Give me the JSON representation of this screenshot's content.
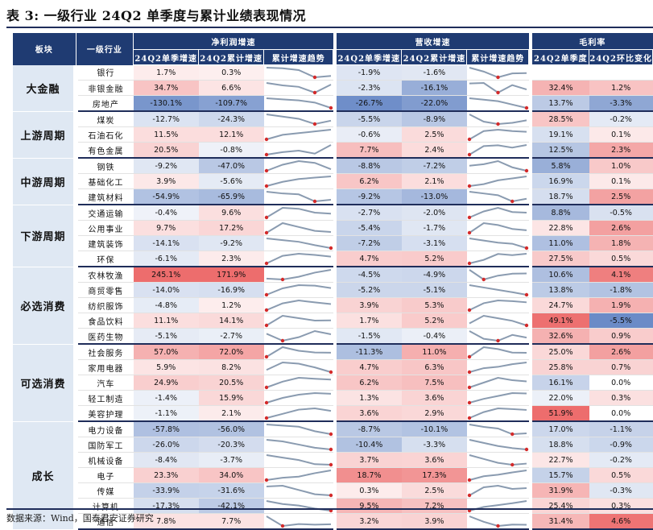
{
  "title": "表 3:  一级行业 24Q2 单季度与累计业绩表现情况",
  "source": "数据来源：Wind，国泰君安证券研究",
  "headers": {
    "block": "板块",
    "industry": "一级行业",
    "profit": "净利润增速",
    "revenue": "营收增速",
    "margin": "毛利率",
    "q2": "24Q2单季增速",
    "cum": "24Q2累计增速",
    "trend": "累计增速趋势",
    "margin_q2": "24Q2单季度",
    "margin_qoq": "24Q2环比变化"
  },
  "colors": {
    "header_bg": "#1f3b72",
    "block_bg": "#dfe8f3",
    "spark_line": "#8a9bb0",
    "spark_dot": "#d42a2a"
  },
  "groups": [
    {
      "name": "大金融",
      "rows": [
        {
          "industry": "银行",
          "p_q2": "1.7%",
          "p_cum": "0.3%",
          "r_q2": "-1.9%",
          "r_cum": "-1.6%",
          "m_q2": "",
          "m_qoq": "",
          "p_trend": [
            6.2,
            5.8,
            4.5,
            -0.7,
            0.3
          ],
          "r_trend": [
            0.5,
            -1.0,
            -3.2,
            -1.7,
            -1.6
          ]
        },
        {
          "industry": "非银金融",
          "p_q2": "34.7%",
          "p_cum": "6.6%",
          "r_q2": "-2.3%",
          "r_cum": "-16.1%",
          "m_q2": "32.4%",
          "m_qoq": "1.2%",
          "p_trend": [
            10,
            5,
            2,
            -10,
            6.6
          ],
          "r_trend": [
            -5,
            -4,
            -22,
            -8,
            -16.1
          ]
        },
        {
          "industry": "房地产",
          "p_q2": "-130.1%",
          "p_cum": "-109.7%",
          "r_q2": "-26.7%",
          "r_cum": "-22.0%",
          "m_q2": "13.7%",
          "m_qoq": "-3.3%",
          "p_trend": [
            -20,
            -30,
            -40,
            -60,
            -109.7
          ],
          "r_trend": [
            -2,
            -5,
            -8,
            -15,
            -22
          ]
        }
      ]
    },
    {
      "name": "上游周期",
      "rows": [
        {
          "industry": "煤炭",
          "p_q2": "-12.7%",
          "p_cum": "-24.3%",
          "r_q2": "-5.5%",
          "r_cum": "-8.9%",
          "m_q2": "28.5%",
          "m_qoq": "-0.2%",
          "p_trend": [
            -10,
            -15,
            -20,
            -32,
            -24.3
          ],
          "r_trend": [
            -4,
            -10,
            -12,
            -11,
            -8.9
          ]
        },
        {
          "industry": "石油石化",
          "p_q2": "11.5%",
          "p_cum": "12.1%",
          "r_q2": "-0.6%",
          "r_cum": "2.5%",
          "m_q2": "19.1%",
          "m_qoq": "0.1%",
          "p_trend": [
            -5,
            3,
            6,
            9,
            12.1
          ],
          "r_trend": [
            -3,
            3,
            4,
            3,
            2.5
          ]
        },
        {
          "industry": "有色金属",
          "p_q2": "20.5%",
          "p_cum": "-0.8%",
          "r_q2": "7.7%",
          "r_cum": "2.4%",
          "m_q2": "12.5%",
          "m_qoq": "2.3%",
          "p_trend": [
            -20,
            -15,
            -12,
            -18,
            -0.8
          ],
          "r_trend": [
            -10,
            1,
            2,
            -1,
            2.4
          ]
        }
      ]
    },
    {
      "name": "中游周期",
      "rows": [
        {
          "industry": "钢铁",
          "p_q2": "-9.2%",
          "p_cum": "-47.0%",
          "r_q2": "-8.8%",
          "r_cum": "-7.2%",
          "m_q2": "5.8%",
          "m_qoq": "1.0%",
          "p_trend": [
            -60,
            -10,
            20,
            5,
            -47
          ],
          "r_trend": [
            -4,
            -3,
            -1,
            -5,
            -7.2
          ]
        },
        {
          "industry": "基础化工",
          "p_q2": "3.9%",
          "p_cum": "-5.6%",
          "r_q2": "6.2%",
          "r_cum": "2.1%",
          "m_q2": "16.9%",
          "m_qoq": "0.1%",
          "p_trend": [
            -40,
            -25,
            -15,
            -10,
            -5.6
          ],
          "r_trend": [
            -8,
            -6,
            -2,
            0,
            2.1
          ]
        },
        {
          "industry": "建筑材料",
          "p_q2": "-54.9%",
          "p_cum": "-65.9%",
          "r_q2": "-9.2%",
          "r_cum": "-13.0%",
          "m_q2": "18.7%",
          "m_qoq": "2.5%",
          "p_trend": [
            -20,
            -30,
            -35,
            -75,
            -65.9
          ],
          "r_trend": [
            -5,
            -7,
            -9,
            -16,
            -13
          ]
        }
      ]
    },
    {
      "name": "下游周期",
      "rows": [
        {
          "industry": "交通运输",
          "p_q2": "-0.4%",
          "p_cum": "9.6%",
          "r_q2": "-2.7%",
          "r_cum": "-2.0%",
          "m_q2": "8.8%",
          "m_qoq": "-0.5%",
          "p_trend": [
            -10,
            40,
            35,
            15,
            9.6
          ],
          "r_trend": [
            -6,
            -1,
            2,
            -1.5,
            -2.0
          ]
        },
        {
          "industry": "公用事业",
          "p_q2": "9.7%",
          "p_cum": "17.2%",
          "r_q2": "-5.4%",
          "r_cum": "-1.7%",
          "m_q2": "22.8%",
          "m_qoq": "2.6%",
          "p_trend": [
            15,
            40,
            30,
            20,
            17.2
          ],
          "r_trend": [
            -3,
            2,
            1,
            -1,
            -1.7
          ]
        },
        {
          "industry": "建筑装饰",
          "p_q2": "-14.1%",
          "p_cum": "-9.2%",
          "r_q2": "-7.2%",
          "r_cum": "-3.1%",
          "m_q2": "11.0%",
          "m_qoq": "1.8%",
          "p_trend": [
            8,
            5,
            2,
            -4,
            -9.2
          ],
          "r_trend": [
            6,
            4,
            2,
            1,
            -3.1
          ]
        },
        {
          "industry": "环保",
          "p_q2": "-6.1%",
          "p_cum": "2.3%",
          "r_q2": "4.7%",
          "r_cum": "5.2%",
          "m_q2": "27.5%",
          "m_qoq": "0.5%",
          "p_trend": [
            -20,
            5,
            12,
            8,
            2.3
          ],
          "r_trend": [
            -3,
            0,
            5,
            4,
            5.2
          ]
        }
      ]
    },
    {
      "name": "必选消费",
      "rows": [
        {
          "industry": "农林牧渔",
          "p_q2": "245.1%",
          "p_cum": "171.9%",
          "r_q2": "-4.5%",
          "r_cum": "-4.9%",
          "m_q2": "10.6%",
          "m_qoq": "4.1%",
          "p_trend": [
            -120,
            -150,
            -60,
            80,
            171.9
          ],
          "r_trend": [
            -3,
            -8,
            -6,
            -5,
            -4.9
          ]
        },
        {
          "industry": "商贸零售",
          "p_q2": "-14.0%",
          "p_cum": "-16.9%",
          "r_q2": "-5.2%",
          "r_cum": "-5.1%",
          "m_q2": "13.8%",
          "m_qoq": "-1.8%",
          "p_trend": [
            -80,
            -20,
            10,
            5,
            -16.9
          ],
          "r_trend": [
            -1,
            -2,
            -3,
            -4,
            -5.1
          ]
        },
        {
          "industry": "纺织服饰",
          "p_q2": "-4.8%",
          "p_cum": "1.2%",
          "r_q2": "3.9%",
          "r_cum": "5.3%",
          "m_q2": "24.7%",
          "m_qoq": "1.9%",
          "p_trend": [
            -30,
            5,
            20,
            10,
            1.2
          ],
          "r_trend": [
            -6,
            4,
            8,
            7,
            5.3
          ]
        },
        {
          "industry": "食品饮料",
          "p_q2": "11.1%",
          "p_cum": "14.1%",
          "r_q2": "1.7%",
          "r_cum": "5.2%",
          "m_q2": "49.1%",
          "m_qoq": "-5.5%",
          "p_trend": [
            12,
            16,
            15,
            14,
            14.1
          ],
          "r_trend": [
            6,
            9,
            8,
            7,
            5.2
          ]
        },
        {
          "industry": "医药生物",
          "p_q2": "-5.1%",
          "p_cum": "-2.7%",
          "r_q2": "-1.5%",
          "r_cum": "-0.4%",
          "m_q2": "32.6%",
          "m_qoq": "0.9%",
          "p_trend": [
            -2,
            -10,
            -6,
            1,
            -2.7
          ],
          "r_trend": [
            3,
            -1,
            -2,
            1,
            -0.4
          ]
        }
      ]
    },
    {
      "name": "可选消费",
      "rows": [
        {
          "industry": "社会服务",
          "p_q2": "57.0%",
          "p_cum": "72.0%",
          "r_q2": "-11.3%",
          "r_cum": "11.0%",
          "m_q2": "25.0%",
          "m_qoq": "2.6%",
          "p_trend": [
            -100,
            300,
            150,
            80,
            72
          ],
          "r_trend": [
            -10,
            40,
            30,
            12,
            11
          ]
        },
        {
          "industry": "家用电器",
          "p_q2": "5.9%",
          "p_cum": "8.2%",
          "r_q2": "4.7%",
          "r_cum": "6.3%",
          "m_q2": "25.8%",
          "m_qoq": "0.7%",
          "p_trend": [
            10,
            16,
            15,
            12,
            8.2
          ],
          "r_trend": [
            -1,
            2,
            3,
            5,
            6.3
          ]
        },
        {
          "industry": "汽车",
          "p_q2": "24.9%",
          "p_cum": "20.5%",
          "r_q2": "6.2%",
          "r_cum": "7.5%",
          "m_q2": "16.1%",
          "m_qoq": "0.0%",
          "p_trend": [
            -20,
            10,
            30,
            25,
            20.5
          ],
          "r_trend": [
            -5,
            5,
            15,
            10,
            7.5
          ]
        },
        {
          "industry": "轻工制造",
          "p_q2": "-1.4%",
          "p_cum": "15.9%",
          "r_q2": "1.3%",
          "r_cum": "3.6%",
          "m_q2": "22.0%",
          "m_qoq": "0.3%",
          "p_trend": [
            -40,
            -10,
            10,
            20,
            15.9
          ],
          "r_trend": [
            -6,
            -2,
            1,
            4,
            3.6
          ]
        },
        {
          "industry": "美容护理",
          "p_q2": "-1.1%",
          "p_cum": "2.1%",
          "r_q2": "3.6%",
          "r_cum": "2.9%",
          "m_q2": "51.9%",
          "m_qoq": "0.0%",
          "p_trend": [
            -15,
            -5,
            5,
            8,
            2.1
          ],
          "r_trend": [
            -8,
            0,
            5,
            4,
            2.9
          ]
        }
      ]
    },
    {
      "name": "成长",
      "rows": [
        {
          "industry": "电力设备",
          "p_q2": "-57.8%",
          "p_cum": "-56.0%",
          "r_q2": "-8.7%",
          "r_cum": "-10.1%",
          "m_q2": "17.0%",
          "m_qoq": "-1.1%",
          "p_trend": [
            30,
            20,
            10,
            -30,
            -56
          ],
          "r_trend": [
            12,
            6,
            2,
            -12,
            -10.1
          ]
        },
        {
          "industry": "国防军工",
          "p_q2": "-26.0%",
          "p_cum": "-20.3%",
          "r_q2": "-10.4%",
          "r_cum": "-3.3%",
          "m_q2": "18.8%",
          "m_qoq": "-0.9%",
          "p_trend": [
            10,
            5,
            -5,
            -15,
            -20.3
          ],
          "r_trend": [
            6,
            3,
            0,
            -2,
            -3.3
          ]
        },
        {
          "industry": "机械设备",
          "p_q2": "-8.4%",
          "p_cum": "-3.7%",
          "r_q2": "3.7%",
          "r_cum": "3.6%",
          "m_q2": "22.7%",
          "m_qoq": "-0.2%",
          "p_trend": [
            8,
            5,
            2,
            -3,
            -3.7
          ],
          "r_trend": [
            8,
            6,
            4,
            3,
            3.6
          ]
        },
        {
          "industry": "电子",
          "p_q2": "23.3%",
          "p_cum": "34.0%",
          "r_q2": "18.7%",
          "r_cum": "17.3%",
          "m_q2": "15.7%",
          "m_qoq": "0.5%",
          "p_trend": [
            -50,
            -30,
            -20,
            10,
            34
          ],
          "r_trend": [
            -8,
            2,
            6,
            12,
            17.3
          ]
        },
        {
          "industry": "传媒",
          "p_q2": "-33.9%",
          "p_cum": "-31.6%",
          "r_q2": "0.3%",
          "r_cum": "2.5%",
          "m_q2": "31.9%",
          "m_qoq": "-0.3%",
          "p_trend": [
            20,
            25,
            0,
            -25,
            -31.6
          ],
          "r_trend": [
            -2,
            3,
            4,
            2,
            2.5
          ]
        },
        {
          "industry": "计算机",
          "p_q2": "-17.3%",
          "p_cum": "-42.1%",
          "r_q2": "9.5%",
          "r_cum": "7.2%",
          "m_q2": "25.4%",
          "m_qoq": "0.3%",
          "p_trend": [
            -10,
            -20,
            -25,
            -35,
            -42.1
          ],
          "r_trend": [
            2,
            4,
            5,
            6,
            7.2
          ]
        },
        {
          "industry": "通信",
          "p_q2": "7.8%",
          "p_cum": "7.7%",
          "r_q2": "3.2%",
          "r_cum": "3.9%",
          "m_q2": "31.4%",
          "m_qoq": "4.6%",
          "p_trend": [
            20,
            5,
            8,
            7,
            7.7
          ],
          "r_trend": [
            10,
            6,
            3,
            4,
            3.9
          ]
        }
      ]
    }
  ]
}
